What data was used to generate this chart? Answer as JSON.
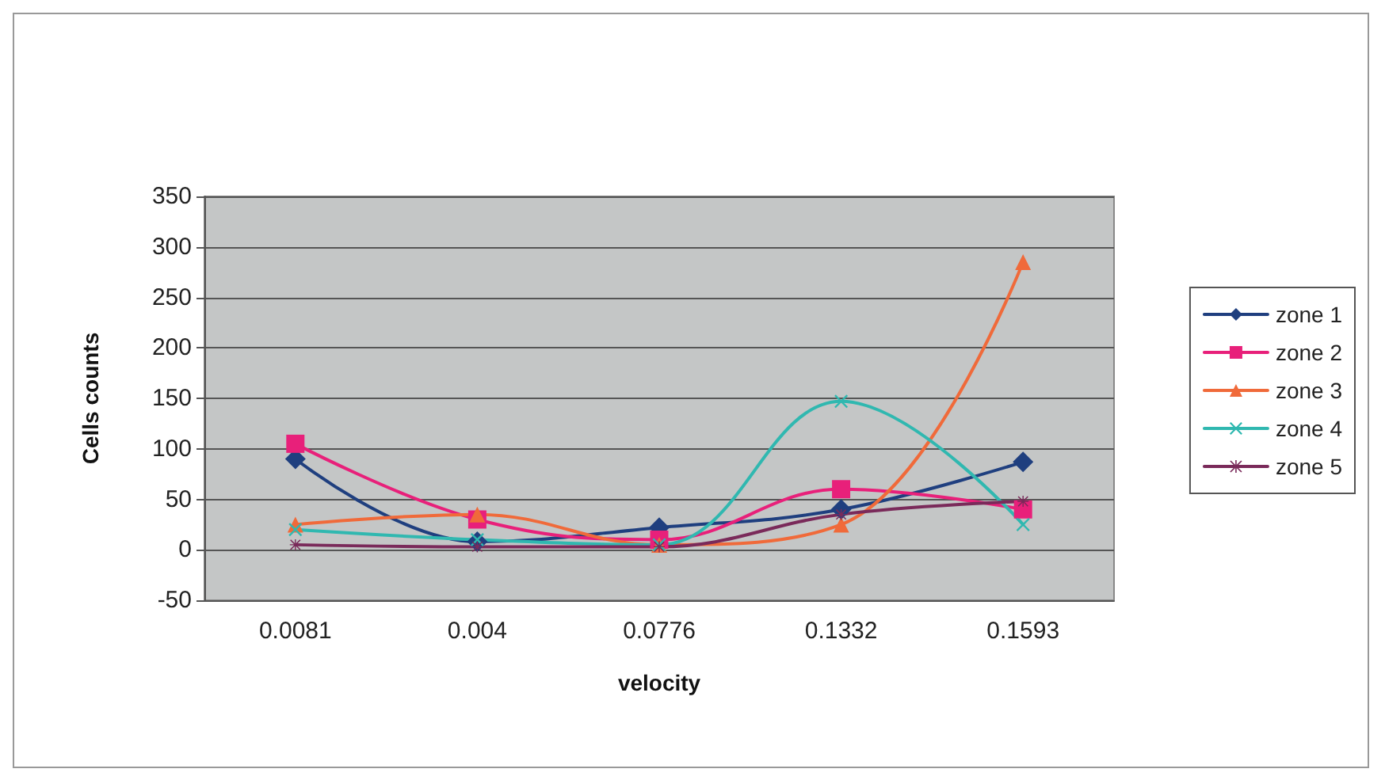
{
  "chart_data": {
    "type": "line",
    "xlabel": "velocity",
    "ylabel": "Cells counts",
    "categories": [
      "0.0081",
      "0.004",
      "0.0776",
      "0.1332",
      "0.1593"
    ],
    "series": [
      {
        "name": "zone 1",
        "color": "#1f3f7f",
        "marker": "diamond",
        "values": [
          90,
          8,
          22,
          40,
          87
        ]
      },
      {
        "name": "zone 2",
        "color": "#e8207a",
        "marker": "square",
        "values": [
          105,
          30,
          10,
          60,
          40
        ]
      },
      {
        "name": "zone 3",
        "color": "#f06a3a",
        "marker": "triangle",
        "values": [
          25,
          35,
          5,
          25,
          285
        ]
      },
      {
        "name": "zone 4",
        "color": "#30b8b0",
        "marker": "cross",
        "values": [
          20,
          10,
          5,
          147,
          25
        ]
      },
      {
        "name": "zone 5",
        "color": "#7a2a5a",
        "marker": "star",
        "values": [
          5,
          3,
          3,
          35,
          48
        ]
      }
    ],
    "ylim": [
      -50,
      350
    ],
    "yticks": [
      -50,
      0,
      50,
      100,
      150,
      200,
      250,
      300,
      350
    ],
    "grid": "y",
    "legend": "right"
  }
}
